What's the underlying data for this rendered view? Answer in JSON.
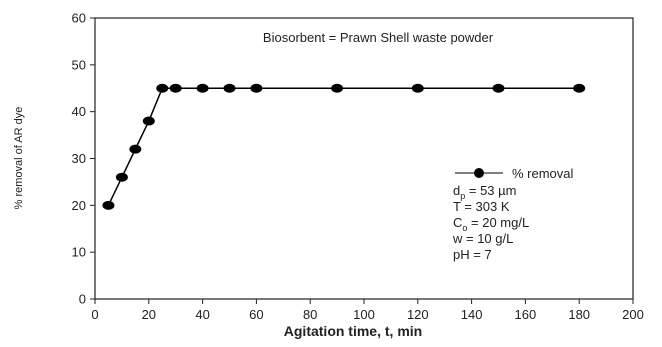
{
  "chart_data": {
    "type": "line",
    "xlabel": "Agitation time, t, min",
    "ylabel": "% removal of AR dye",
    "xlim": [
      0,
      200
    ],
    "ylim": [
      0,
      60
    ],
    "xticks": [
      0,
      20,
      40,
      60,
      80,
      100,
      120,
      140,
      160,
      180,
      200
    ],
    "yticks": [
      0,
      10,
      20,
      30,
      40,
      50,
      60
    ],
    "grid": false,
    "legend_position": "right",
    "annotation_top": "Biosorbent = Prawn Shell waste powder",
    "series": [
      {
        "name": "% removal",
        "color": "#000000",
        "marker": "filled-circle",
        "x": [
          5,
          10,
          15,
          20,
          25,
          30,
          40,
          50,
          60,
          90,
          120,
          150,
          180
        ],
        "y": [
          20,
          26,
          32,
          38,
          45,
          45,
          45,
          45,
          45,
          45,
          45,
          45,
          45
        ]
      }
    ],
    "conditions": [
      {
        "name": "d",
        "sub": "p",
        "rest": " = 53 µm"
      },
      {
        "name": "T",
        "sub": "",
        "rest": " = 303 K"
      },
      {
        "name": "C",
        "sub": "o",
        "rest": " = 20 mg/L"
      },
      {
        "name": "w",
        "sub": "",
        "rest": " = 10 g/L"
      },
      {
        "name": "pH",
        "sub": "",
        "rest": " = 7"
      }
    ]
  }
}
